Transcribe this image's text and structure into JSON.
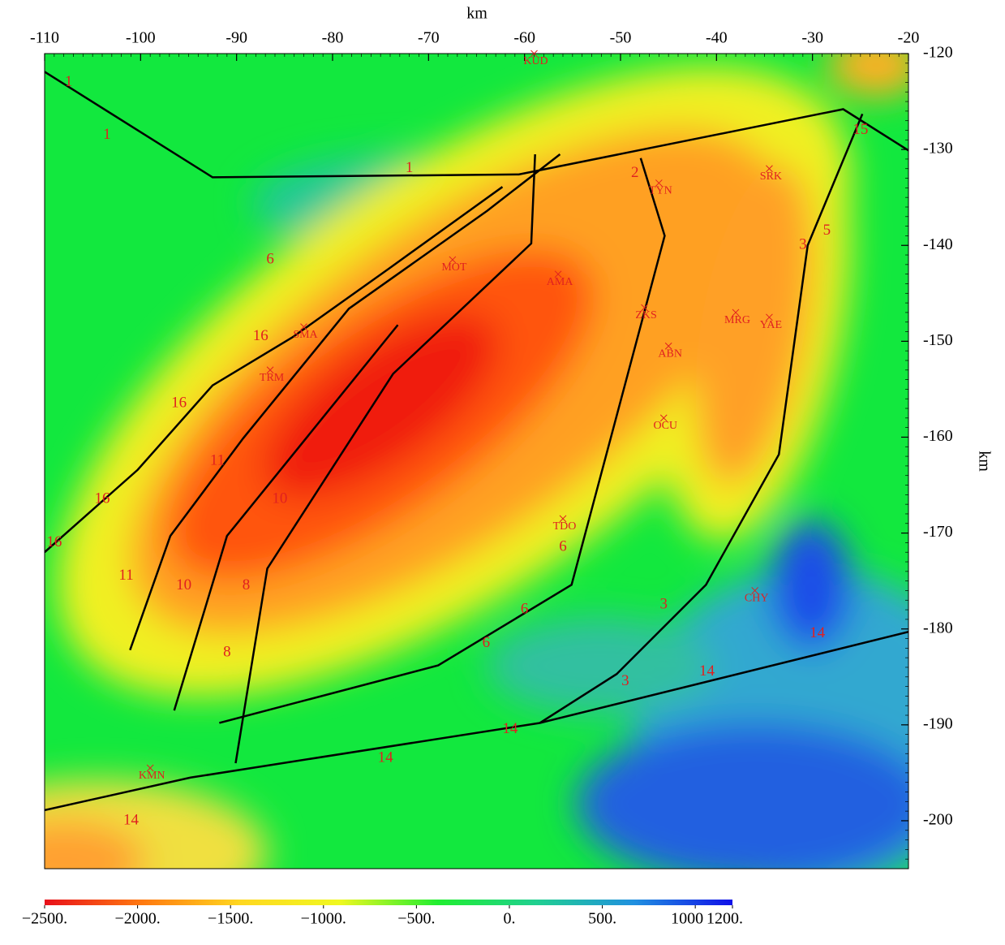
{
  "chart_data": {
    "type": "contour-map",
    "x_label": "km",
    "y_label": "km",
    "xlim": [
      -110,
      -20
    ],
    "ylim": [
      -205,
      -120
    ],
    "xticks": [
      -110,
      -100,
      -90,
      -80,
      -70,
      -60,
      -50,
      -40,
      -30,
      -20
    ],
    "yticks": [
      -120,
      -130,
      -140,
      -150,
      -160,
      -170,
      -180,
      -190,
      -200
    ],
    "faults": [
      {
        "x": [
          -110,
          -92.5,
          -60.6,
          -26.8,
          -20
        ],
        "y": [
          -121.9,
          -132.9,
          -132.6,
          -125.8,
          -130.1
        ]
      },
      {
        "x": [
          -24.8,
          -30.5,
          -33.5,
          -41.1,
          -50.4,
          -58.4
        ],
        "y": [
          -126.3,
          -140,
          -161.8,
          -175.4,
          -184.7,
          -189.8
        ]
      },
      {
        "x": [
          -110,
          -94.8,
          -58.4,
          -20
        ],
        "y": [
          -198.9,
          -195.5,
          -189.8,
          -180.3
        ]
      },
      {
        "x": [
          -110,
          -100.3,
          -92.5,
          -84.2,
          -74.1,
          -62.3
        ],
        "y": [
          -172,
          -163.4,
          -154.6,
          -149.6,
          -142.4,
          -133.9
        ]
      },
      {
        "x": [
          -101.1,
          -96.9,
          -89.3,
          -78.3,
          -63.9,
          -56.3
        ],
        "y": [
          -182.2,
          -170.3,
          -160.1,
          -146.6,
          -136.4,
          -130.5
        ]
      },
      {
        "x": [
          -91.8,
          -69,
          -55.1,
          -45.4,
          -47.9
        ],
        "y": [
          -189.8,
          -183.8,
          -175.4,
          -139,
          -130.9
        ]
      },
      {
        "x": [
          -90.1,
          -86.8,
          -73.7,
          -59.3,
          -58.9
        ],
        "y": [
          -194,
          -173.7,
          -153.4,
          -139.8,
          -130.5
        ]
      },
      {
        "x": [
          -96.5,
          -91,
          -73.2
        ],
        "y": [
          -188.5,
          -170.3,
          -148.3
        ]
      }
    ],
    "places": [
      {
        "label": "KUD",
        "x": -59,
        "y": -120
      },
      {
        "label": "TYN",
        "x": -46,
        "y": -133.5
      },
      {
        "label": "SRK",
        "x": -34.5,
        "y": -132
      },
      {
        "label": "AMA",
        "x": -56.5,
        "y": -143
      },
      {
        "label": "MOT",
        "x": -67.5,
        "y": -141.5
      },
      {
        "label": "ZKS",
        "x": -47.5,
        "y": -146.5
      },
      {
        "label": "MRG",
        "x": -38,
        "y": -147
      },
      {
        "label": "YAE",
        "x": -34.5,
        "y": -147.5
      },
      {
        "label": "ABN",
        "x": -45,
        "y": -150.5
      },
      {
        "label": "SMA",
        "x": -83,
        "y": -148.5
      },
      {
        "label": "TRM",
        "x": -86.5,
        "y": -153
      },
      {
        "label": "OCU",
        "x": -45.5,
        "y": -158
      },
      {
        "label": "TDO",
        "x": -56,
        "y": -168.5
      },
      {
        "label": "CHY",
        "x": -36,
        "y": -176
      },
      {
        "label": "KMN",
        "x": -99,
        "y": -194.5
      }
    ],
    "zone_labels": [
      {
        "label": "1",
        "x": -107.5,
        "y": -123
      },
      {
        "label": "1",
        "x": -103.5,
        "y": -128.5
      },
      {
        "label": "1",
        "x": -72,
        "y": -132
      },
      {
        "label": "2",
        "x": -48.5,
        "y": -132.5
      },
      {
        "label": "6",
        "x": -86.5,
        "y": -141.5
      },
      {
        "label": "16",
        "x": -87.5,
        "y": -149.5
      },
      {
        "label": "16",
        "x": -96,
        "y": -156.5
      },
      {
        "label": "16",
        "x": -104,
        "y": -166.5
      },
      {
        "label": "16",
        "x": -109,
        "y": -171
      },
      {
        "label": "11",
        "x": -101.5,
        "y": -174.5
      },
      {
        "label": "11",
        "x": -92,
        "y": -162.5
      },
      {
        "label": "10",
        "x": -95.5,
        "y": -175.5
      },
      {
        "label": "10",
        "x": -85.5,
        "y": -166.5
      },
      {
        "label": "8",
        "x": -89,
        "y": -175.5
      },
      {
        "label": "8",
        "x": -91,
        "y": -182.5
      },
      {
        "label": "6",
        "x": -64,
        "y": -181.5
      },
      {
        "label": "6",
        "x": -60,
        "y": -178
      },
      {
        "label": "6",
        "x": -56,
        "y": -171.5
      },
      {
        "label": "3",
        "x": -45.5,
        "y": -177.5
      },
      {
        "label": "3",
        "x": -49.5,
        "y": -185.5
      },
      {
        "label": "3",
        "x": -31,
        "y": -140
      },
      {
        "label": "5",
        "x": -28.5,
        "y": -138.5
      },
      {
        "label": "15",
        "x": -25,
        "y": -128
      },
      {
        "label": "14",
        "x": -29.5,
        "y": -180.5
      },
      {
        "label": "14",
        "x": -41,
        "y": -184.5
      },
      {
        "label": "14",
        "x": -61.5,
        "y": -190.5
      },
      {
        "label": "14",
        "x": -74.5,
        "y": -193.5
      },
      {
        "label": "14",
        "x": -101,
        "y": -200
      }
    ],
    "colorbar": {
      "lim": [
        -2500,
        1200
      ],
      "colors": [
        "#e8101a",
        "#ff7a10",
        "#ffd820",
        "#f0f820",
        "#20ee30",
        "#20d090",
        "#2090e0",
        "#1010e8"
      ],
      "ticks": [
        {
          "value": -2500,
          "label": "−2500."
        },
        {
          "value": -2000,
          "label": "−2000."
        },
        {
          "value": -1500,
          "label": "−1500."
        },
        {
          "value": -1000,
          "label": "−1000."
        },
        {
          "value": -500,
          "label": "−500."
        },
        {
          "value": 0,
          "label": "0."
        },
        {
          "value": 500,
          "label": "500."
        },
        {
          "value": 1000,
          "label": "1000"
        },
        {
          "value": 1200,
          "label": "1200."
        }
      ]
    }
  }
}
